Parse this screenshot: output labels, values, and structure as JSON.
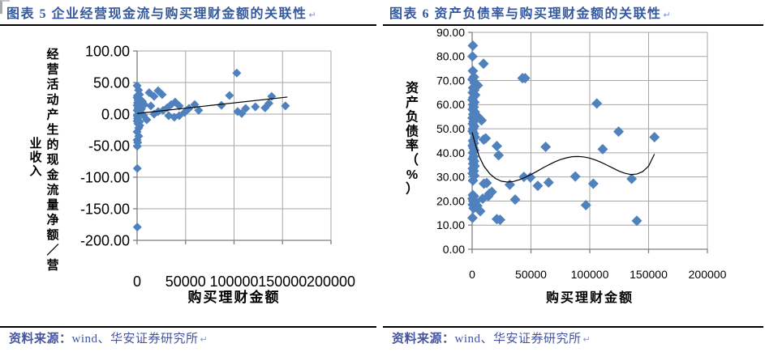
{
  "colors": {
    "title_text": "#35599c",
    "source_text": "#46549e",
    "marker": "#4F81BD",
    "grid": "#a6a6a6",
    "axis": "#7f7f7f",
    "trend": "#000000",
    "rule": "#000000"
  },
  "panels": [
    {
      "title": "图表 5  企业经营现金流与购买理财金额的关联性",
      "paragraph_mark": "↵",
      "source_label": "资料来源：",
      "source_body": "wind、华安证券研究所"
    },
    {
      "title": "图表 6  资产负债率与购买理财金额的关联性",
      "paragraph_mark": "↵",
      "source_label": "资料来源：",
      "source_body": "wind、华安证券研究所"
    }
  ],
  "chart_data": [
    {
      "type": "scatter",
      "title": "图表 5 企业经营现金流与购买理财金额的关联性",
      "xlabel": "购买理财金额",
      "ylabel": "经营活动产生的现金流量净额／营业收入",
      "ylabel_columns": [
        "经营活动产生的现金流量净额／营",
        "业收入"
      ],
      "xlim": [
        0,
        200000
      ],
      "ylim": [
        -200,
        100
      ],
      "xticks": [
        0,
        50000,
        100000,
        150000,
        200000
      ],
      "xtick_labels": [
        "0",
        "50000",
        "100000",
        "150000",
        "200000"
      ],
      "ytick_values": [
        100,
        50,
        0,
        -50,
        -100,
        -150,
        -200
      ],
      "ytick_labels": [
        "100.00",
        "50.00",
        "0.00",
        "-50.00",
        "-100.00",
        "-150.00",
        "-200.00"
      ],
      "legend": "none",
      "grid": "on",
      "points": [
        [
          0,
          45
        ],
        [
          1500,
          38
        ],
        [
          200,
          29
        ],
        [
          0,
          26
        ],
        [
          3300,
          23
        ],
        [
          900,
          22
        ],
        [
          500,
          18
        ],
        [
          0,
          14
        ],
        [
          1000,
          10
        ],
        [
          0,
          6
        ],
        [
          1700,
          2.5
        ],
        [
          0,
          -2.5
        ],
        [
          400,
          -7
        ],
        [
          0,
          -11
        ],
        [
          800,
          -15
        ],
        [
          1700,
          -22
        ],
        [
          0,
          -28
        ],
        [
          2800,
          -18
        ],
        [
          1700,
          -35
        ],
        [
          0,
          -41
        ],
        [
          200,
          -51
        ],
        [
          600,
          -45
        ],
        [
          200,
          -86
        ],
        [
          200,
          -179
        ],
        [
          2500,
          31
        ],
        [
          4500,
          8
        ],
        [
          2500,
          -12
        ],
        [
          5500,
          20
        ],
        [
          6500,
          -2
        ],
        [
          7500,
          15
        ],
        [
          12500,
          34
        ],
        [
          17500,
          28
        ],
        [
          21700,
          37
        ],
        [
          25900,
          31
        ],
        [
          14200,
          13
        ],
        [
          10000,
          -9
        ],
        [
          17500,
          0
        ],
        [
          21700,
          4
        ],
        [
          26800,
          6
        ],
        [
          30900,
          10
        ],
        [
          35100,
          15
        ],
        [
          39300,
          19
        ],
        [
          43500,
          13
        ],
        [
          32600,
          -2.5
        ],
        [
          38400,
          -5
        ],
        [
          43500,
          -2.5
        ],
        [
          49000,
          2.5
        ],
        [
          53500,
          9
        ],
        [
          59400,
          15
        ],
        [
          63500,
          6
        ],
        [
          87000,
          14
        ],
        [
          95300,
          29.5
        ],
        [
          102800,
          65
        ],
        [
          103700,
          4
        ],
        [
          107900,
          1
        ],
        [
          112000,
          9
        ],
        [
          122000,
          11.5
        ],
        [
          132000,
          10
        ],
        [
          136000,
          17
        ],
        [
          138800,
          28
        ],
        [
          153000,
          13
        ]
      ],
      "trend": [
        [
          0,
          1
        ],
        [
          155000,
          27
        ]
      ]
    },
    {
      "type": "scatter",
      "title": "图表 6 资产负债率与购买理财金额的关联性",
      "xlabel": "购买理财金额",
      "ylabel": "资产负债率（%）",
      "ylabel_columns": [
        "资产负债率（%）"
      ],
      "xlim": [
        0,
        200000
      ],
      "ylim": [
        0,
        90
      ],
      "xticks": [
        0,
        50000,
        100000,
        150000,
        200000
      ],
      "xtick_labels": [
        "0",
        "50000",
        "100000",
        "150000",
        "200000"
      ],
      "ytick_values": [
        90,
        80,
        70,
        60,
        50,
        40,
        30,
        20,
        10,
        0
      ],
      "ytick_labels": [
        "90.00",
        "80.00",
        "70.00",
        "60.00",
        "50.00",
        "40.00",
        "30.00",
        "20.00",
        "10.00",
        "0.00"
      ],
      "legend": "none",
      "grid": "on",
      "points": [
        [
          600,
          84.5
        ],
        [
          300,
          80
        ],
        [
          9700,
          77
        ],
        [
          600,
          74
        ],
        [
          1500,
          71.5
        ],
        [
          300,
          70.5
        ],
        [
          2000,
          69
        ],
        [
          4800,
          68
        ],
        [
          800,
          67
        ],
        [
          1800,
          66
        ],
        [
          500,
          65
        ],
        [
          2600,
          64
        ],
        [
          1000,
          63
        ],
        [
          300,
          62
        ],
        [
          1900,
          61
        ],
        [
          700,
          60
        ],
        [
          1400,
          59
        ],
        [
          400,
          58
        ],
        [
          2200,
          57
        ],
        [
          900,
          56
        ],
        [
          5000,
          55
        ],
        [
          300,
          54.5
        ],
        [
          8000,
          53.5
        ],
        [
          1200,
          53
        ],
        [
          500,
          52
        ],
        [
          1800,
          51
        ],
        [
          800,
          50
        ],
        [
          300,
          49
        ],
        [
          1500,
          48
        ],
        [
          2400,
          46.5
        ],
        [
          11500,
          46
        ],
        [
          9800,
          45.5
        ],
        [
          700,
          45
        ],
        [
          1600,
          44
        ],
        [
          400,
          43
        ],
        [
          21000,
          42.8
        ],
        [
          62500,
          42.5
        ],
        [
          1100,
          42
        ],
        [
          2000,
          41
        ],
        [
          600,
          40
        ],
        [
          22500,
          39
        ],
        [
          1300,
          38.5
        ],
        [
          400,
          37.5
        ],
        [
          1700,
          36.5
        ],
        [
          800,
          35.5
        ],
        [
          2100,
          34.5
        ],
        [
          500,
          33.5
        ],
        [
          1400,
          32.5
        ],
        [
          300,
          31.5
        ],
        [
          1900,
          30.5
        ],
        [
          44000,
          30
        ],
        [
          87700,
          30.2
        ],
        [
          49500,
          29.8
        ],
        [
          135600,
          29.2
        ],
        [
          700,
          28.5
        ],
        [
          12400,
          27.5
        ],
        [
          10000,
          27.2
        ],
        [
          103000,
          27.2
        ],
        [
          32000,
          26.8
        ],
        [
          55800,
          26.3
        ],
        [
          65000,
          27.7
        ],
        [
          16700,
          23.8
        ],
        [
          14500,
          23
        ],
        [
          600,
          22.5
        ],
        [
          13700,
          22
        ],
        [
          1500,
          22
        ],
        [
          9000,
          21
        ],
        [
          300,
          21
        ],
        [
          36600,
          20.6
        ],
        [
          1000,
          20
        ],
        [
          2300,
          19.5
        ],
        [
          2800,
          19.7
        ],
        [
          500,
          18.5
        ],
        [
          4400,
          18
        ],
        [
          96700,
          18.3
        ],
        [
          1200,
          17
        ],
        [
          6900,
          15.8
        ],
        [
          300,
          13
        ],
        [
          21000,
          12.5
        ],
        [
          23800,
          12.2
        ],
        [
          140000,
          11.8
        ],
        [
          42800,
          71
        ],
        [
          45000,
          71
        ],
        [
          106000,
          60.5
        ],
        [
          111000,
          41.5
        ],
        [
          124500,
          48.8
        ],
        [
          155000,
          46.5
        ]
      ],
      "trend": [
        [
          0,
          48.5
        ],
        [
          3000,
          43
        ],
        [
          6000,
          38.5
        ],
        [
          10000,
          34.5
        ],
        [
          15000,
          31.3
        ],
        [
          20000,
          29.3
        ],
        [
          25000,
          28.2
        ],
        [
          30000,
          27.9
        ],
        [
          35000,
          28.1
        ],
        [
          40000,
          28.8
        ],
        [
          45000,
          29.8
        ],
        [
          50000,
          31
        ],
        [
          55000,
          32.3
        ],
        [
          60000,
          33.7
        ],
        [
          65000,
          35
        ],
        [
          70000,
          36.2
        ],
        [
          75000,
          37.2
        ],
        [
          80000,
          37.9
        ],
        [
          85000,
          38.4
        ],
        [
          90000,
          38.5
        ],
        [
          95000,
          38.3
        ],
        [
          100000,
          37.8
        ],
        [
          105000,
          37
        ],
        [
          110000,
          36
        ],
        [
          115000,
          34.8
        ],
        [
          120000,
          33.6
        ],
        [
          125000,
          32.4
        ],
        [
          130000,
          31.5
        ],
        [
          135000,
          31
        ],
        [
          140000,
          31.2
        ],
        [
          145000,
          32.2
        ],
        [
          150000,
          34.5
        ],
        [
          155000,
          39.5
        ]
      ]
    }
  ]
}
